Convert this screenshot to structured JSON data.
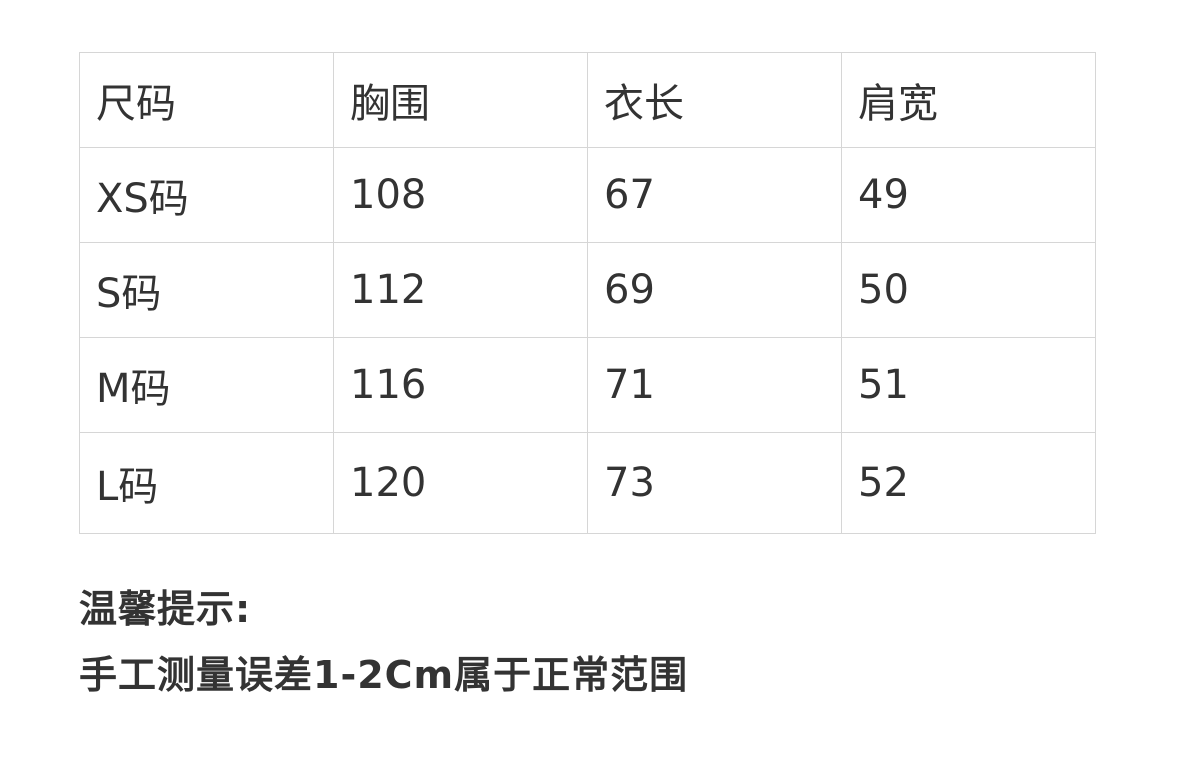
{
  "table": {
    "headers": [
      "尺码",
      "胸围",
      "衣长",
      "肩宽"
    ],
    "rows": [
      [
        "XS码",
        "108",
        "67",
        "49"
      ],
      [
        "S码",
        "112",
        "69",
        "50"
      ],
      [
        "M码",
        "116",
        "71",
        "51"
      ],
      [
        "L码",
        "120",
        "73",
        "52"
      ]
    ]
  },
  "notes": {
    "title": "温馨提示:",
    "text": "手工测量误差1-2Cm属于正常范围"
  }
}
